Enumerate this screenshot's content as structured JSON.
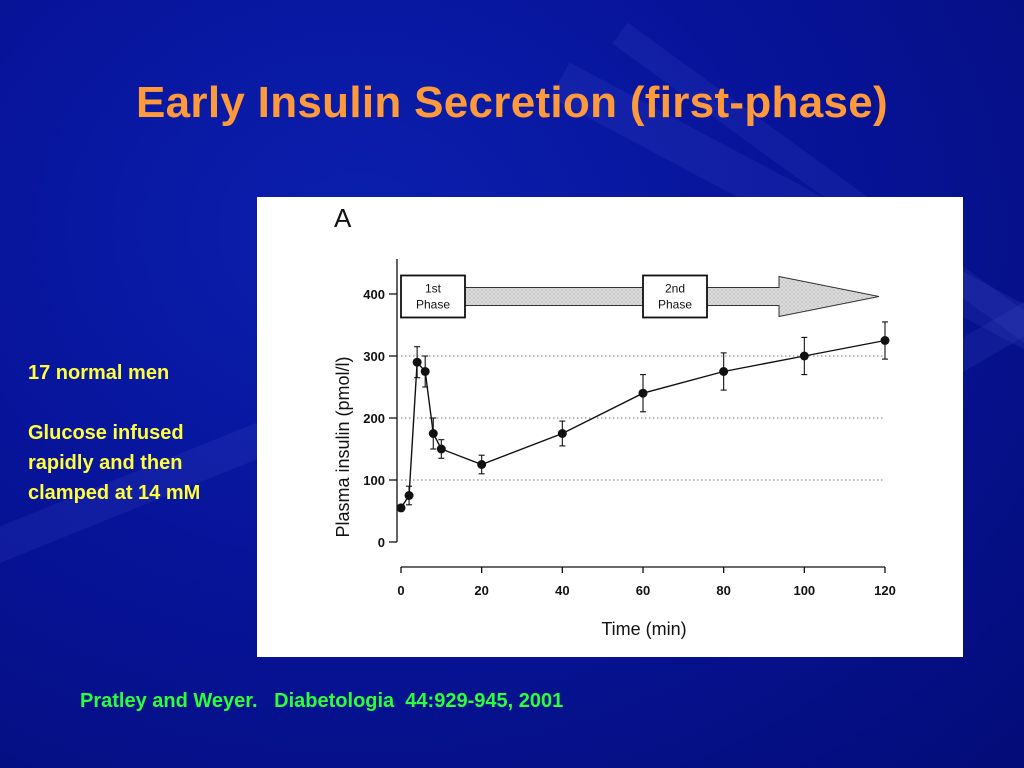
{
  "slide": {
    "title": "Early Insulin Secretion (first-phase)",
    "notes": [
      "17 normal men",
      "Glucose infused rapidly and then clamped at 14 mM"
    ],
    "citation": "Pratley and Weyer.   Diabetologia  44:929-945, 2001"
  },
  "colors": {
    "background": "#07149a",
    "title": "#ff9a3c",
    "notes": "#ffff3d",
    "citation": "#2cff3a"
  },
  "chart_data": {
    "type": "line",
    "panel_label": "A",
    "xlabel": "Time (min)",
    "ylabel": "Plasma insulin (pmol/l)",
    "xlim": [
      0,
      120
    ],
    "ylim": [
      0,
      400
    ],
    "x_ticks": [
      0,
      20,
      40,
      60,
      80,
      100,
      120
    ],
    "y_ticks": [
      0,
      100,
      200,
      300,
      400
    ],
    "grid": "dotted horizontal at 100, 200, 300",
    "phases": [
      {
        "label_lines": [
          "1st",
          "Phase"
        ],
        "at": 0
      },
      {
        "label_lines": [
          "2nd",
          "Phase"
        ],
        "at": 60
      }
    ],
    "series": [
      {
        "x": [
          0,
          2,
          4,
          6,
          8,
          10,
          20,
          40,
          60,
          80,
          100,
          120
        ],
        "y": [
          55,
          75,
          290,
          275,
          175,
          150,
          125,
          175,
          240,
          275,
          300,
          325
        ],
        "err": [
          0,
          15,
          25,
          25,
          25,
          15,
          15,
          20,
          30,
          30,
          30,
          30
        ]
      }
    ]
  }
}
